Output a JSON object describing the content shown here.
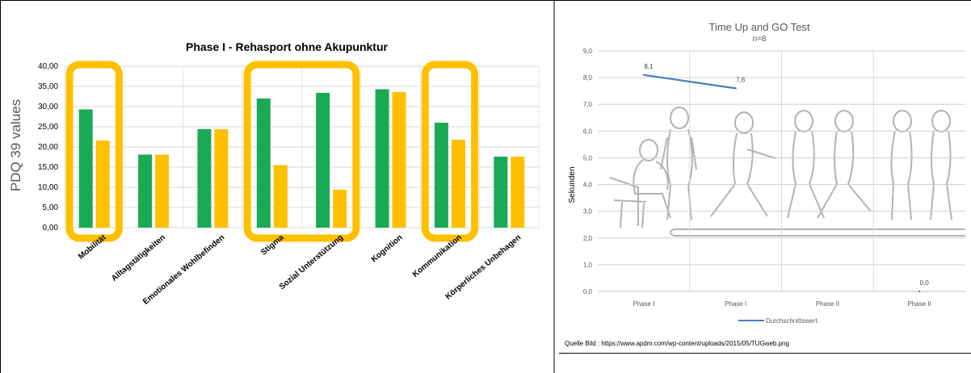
{
  "chart_data": [
    {
      "type": "bar",
      "title": "Phase I - Rehasport ohne Akupunktur",
      "ylabel": "PDQ 39 values",
      "xlabel": "",
      "ylim": [
        0,
        40
      ],
      "y_ticks": [
        "0,00",
        "5,00",
        "10,00",
        "15,00",
        "20,00",
        "25,00",
        "30,00",
        "35,00",
        "40,00"
      ],
      "grid": true,
      "categories": [
        "Mobilität",
        "Alltagstätigkeiten",
        "Emotionales Wohlbefinden",
        "Stigma",
        "Sozial Unterstützung",
        "Kognition",
        "Kommunikation",
        "Körperliches Unbehagen"
      ],
      "series": [
        {
          "color": "#1aaa55",
          "values": [
            29.3,
            18.1,
            24.4,
            32.0,
            33.4,
            34.3,
            26.0,
            17.6
          ]
        },
        {
          "color": "#ffc000",
          "values": [
            21.6,
            18.1,
            24.4,
            15.5,
            9.4,
            33.6,
            21.8,
            17.6
          ]
        }
      ],
      "highlights": [
        {
          "categories": [
            0
          ],
          "color": "#ffc000"
        },
        {
          "categories": [
            3,
            4
          ],
          "color": "#ffc000"
        },
        {
          "categories": [
            6
          ],
          "color": "#ffc000"
        }
      ]
    },
    {
      "type": "line",
      "title": "Time Up and GO Test",
      "subtitle": "n=8",
      "ylabel": "Sekunden",
      "xlabel": "",
      "ylim": [
        0,
        9
      ],
      "y_ticks": [
        "0,0",
        "1,0",
        "2,0",
        "3,0",
        "4,0",
        "5,0",
        "6,0",
        "7,0",
        "8,0",
        "9,0"
      ],
      "grid": true,
      "categories": [
        "Phase I",
        "Phase I",
        "Phase II",
        "Phase II"
      ],
      "series": [
        {
          "name": "Durchschnittswert",
          "color": "#4a7ebb",
          "values": [
            8.1,
            7.6,
            null,
            0.0
          ],
          "labels": [
            "8,1",
            "7,6",
            "",
            "0,0"
          ]
        }
      ],
      "legend": "bottom",
      "source_note": "Quelle Bild : https://www.apdm.com/wp-content/uploads/2015/05/TUGweb.png"
    }
  ]
}
